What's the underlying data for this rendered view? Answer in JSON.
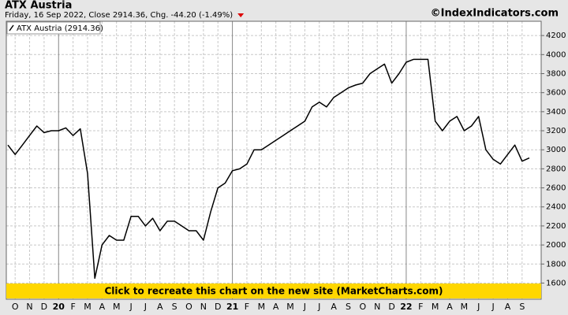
{
  "chart_data": {
    "type": "line",
    "title": "ATX Austria",
    "subtitle": "Friday, 16 Sep 2022, Close 2914.36, Chg. -44.20 (-1.49%)",
    "source": "©IndexIndicators.com",
    "banner": "Click to recreate this chart on the new site (MarketCharts.com)",
    "categories": [
      null,
      "O",
      null,
      "N",
      null,
      "D",
      null,
      "20",
      null,
      "F",
      null,
      "M",
      null,
      "A",
      null,
      "M",
      null,
      "J",
      null,
      "J",
      null,
      "A",
      null,
      "S",
      null,
      "O",
      null,
      "N",
      null,
      "D",
      null,
      "21",
      null,
      "F",
      null,
      "M",
      null,
      "A",
      null,
      "M",
      null,
      "J",
      null,
      "J",
      null,
      "A",
      null,
      "S",
      null,
      "O",
      null,
      "N",
      null,
      "D",
      null,
      "22",
      null,
      "F",
      null,
      "M",
      null,
      "A",
      null,
      "M",
      null,
      "J",
      null,
      "J",
      null,
      "A",
      null,
      "S",
      null
    ],
    "series": [
      {
        "name": "ATX Austria (2914.36)",
        "color": "#000000",
        "values": [
          3050,
          2950,
          3050,
          3150,
          3250,
          3180,
          3200,
          3200,
          3230,
          3150,
          3220,
          2750,
          1650,
          2000,
          2100,
          2050,
          2050,
          2300,
          2300,
          2200,
          2280,
          2150,
          2250,
          2250,
          2200,
          2150,
          2150,
          2050,
          2350,
          2600,
          2650,
          2780,
          2800,
          2850,
          3000,
          3000,
          3050,
          3100,
          3150,
          3200,
          3250,
          3300,
          3450,
          3500,
          3450,
          3550,
          3600,
          3650,
          3680,
          3700,
          3800,
          3850,
          3900,
          3700,
          3800,
          3920,
          3950,
          3950,
          3950,
          3300,
          3200,
          3300,
          3350,
          3200,
          3250,
          3350,
          3000,
          2900,
          2850,
          2950,
          3050,
          2880,
          2914.36
        ]
      }
    ],
    "ylim": [
      1430,
      4350
    ],
    "yticks": [
      1600,
      1800,
      2000,
      2200,
      2400,
      2600,
      2800,
      3000,
      3200,
      3400,
      3600,
      3800,
      4000,
      4200
    ],
    "grid": true,
    "legend": "top-left"
  }
}
